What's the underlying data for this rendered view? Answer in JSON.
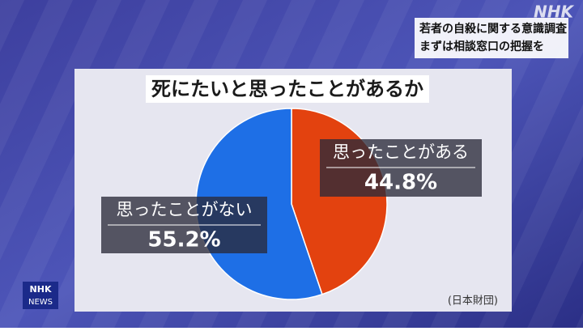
{
  "chart_data": {
    "type": "pie",
    "title": "死にたいと思ったことがあるか",
    "categories": [
      "思ったことがある",
      "思ったことがない"
    ],
    "values": [
      44.8,
      55.2
    ],
    "value_labels": [
      "44.8%",
      "55.2%"
    ],
    "colors": [
      "#e3420f",
      "#1e6fe6"
    ],
    "source": "(日本財団)"
  },
  "caption": [
    "若者の自殺に関する意識調査",
    "まずは相談窓口の把握を"
  ],
  "channel_logo": "NHK",
  "news_logo": {
    "top": "NHK",
    "bottom": "NEWS"
  }
}
